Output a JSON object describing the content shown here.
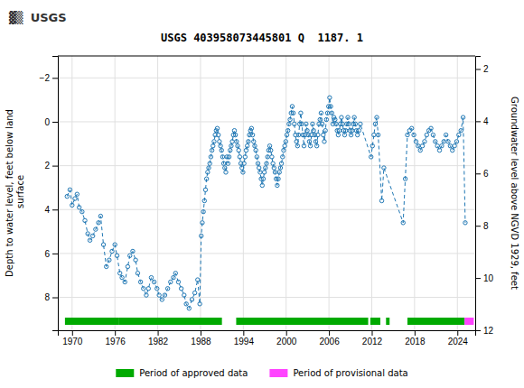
{
  "chart_data": {
    "type": "line",
    "title": "USGS 403958073445801 Q  1187. 1",
    "annotations": [
      "▓▒",
      "USGS"
    ],
    "ylabel": "Depth to water level, feet below land\n surface",
    "y2label": "Groundwater level above NGVD 1929, feet",
    "xlim": [
      1968.0,
      2026.5
    ],
    "xticks": [
      1970,
      1976,
      1982,
      1988,
      1994,
      2000,
      2006,
      2012,
      2018,
      2024
    ],
    "ylim": [
      9.5,
      -3.0
    ],
    "yticks": [
      -2,
      0,
      2,
      4,
      6,
      8
    ],
    "y2lim": [
      12.0,
      1.5
    ],
    "y2ticks": [
      2,
      4,
      6,
      8,
      10,
      12
    ],
    "grid": true,
    "x": [
      1969.3,
      1969.7,
      1970.0,
      1970.4,
      1970.7,
      1971.0,
      1971.4,
      1971.8,
      1972.2,
      1972.5,
      1972.9,
      1973.3,
      1973.7,
      1974.0,
      1974.4,
      1974.8,
      1975.2,
      1975.6,
      1976.0,
      1976.3,
      1976.7,
      1977.0,
      1977.4,
      1977.8,
      1978.1,
      1978.5,
      1978.9,
      1979.2,
      1979.6,
      1980.0,
      1980.4,
      1980.7,
      1981.1,
      1981.5,
      1981.9,
      1982.2,
      1982.6,
      1983.0,
      1983.4,
      1983.8,
      1984.2,
      1984.5,
      1984.9,
      1985.3,
      1985.7,
      1986.0,
      1986.4,
      1986.8,
      1987.2,
      1987.6,
      1987.9,
      1988.1,
      1988.25,
      1988.4,
      1988.55,
      1988.7,
      1988.85,
      1989.0,
      1989.15,
      1989.3,
      1989.45,
      1989.6,
      1989.75,
      1989.9,
      1990.05,
      1990.2,
      1990.35,
      1990.5,
      1990.65,
      1990.8,
      1990.95,
      1991.1,
      1991.25,
      1991.4,
      1991.55,
      1991.7,
      1991.85,
      1992.0,
      1992.15,
      1992.3,
      1992.45,
      1992.6,
      1992.75,
      1992.9,
      1993.05,
      1993.2,
      1993.35,
      1993.5,
      1993.65,
      1993.8,
      1993.95,
      1994.1,
      1994.25,
      1994.4,
      1994.55,
      1994.7,
      1994.85,
      1995.0,
      1995.15,
      1995.3,
      1995.45,
      1995.6,
      1995.75,
      1995.9,
      1996.05,
      1996.2,
      1996.35,
      1996.5,
      1996.65,
      1996.8,
      1996.95,
      1997.1,
      1997.25,
      1997.4,
      1997.55,
      1997.7,
      1997.85,
      1998.0,
      1998.15,
      1998.3,
      1998.45,
      1998.6,
      1998.75,
      1998.9,
      1999.05,
      1999.2,
      1999.35,
      1999.5,
      1999.65,
      1999.8,
      1999.95,
      2000.1,
      2000.25,
      2000.4,
      2000.55,
      2000.7,
      2000.85,
      2001.0,
      2001.15,
      2001.3,
      2001.45,
      2001.6,
      2001.75,
      2001.9,
      2002.05,
      2002.2,
      2002.35,
      2002.5,
      2002.65,
      2002.8,
      2002.95,
      2003.1,
      2003.25,
      2003.4,
      2003.55,
      2003.7,
      2003.85,
      2004.0,
      2004.15,
      2004.3,
      2004.45,
      2004.6,
      2004.75,
      2004.9,
      2005.05,
      2005.2,
      2005.35,
      2005.5,
      2005.65,
      2005.8,
      2005.95,
      2006.1,
      2006.25,
      2006.4,
      2006.55,
      2006.7,
      2006.85,
      2007.0,
      2007.15,
      2007.3,
      2007.45,
      2007.6,
      2007.75,
      2007.9,
      2008.05,
      2008.2,
      2008.35,
      2008.5,
      2008.65,
      2008.8,
      2008.95,
      2009.1,
      2009.25,
      2009.4,
      2009.55,
      2009.7,
      2009.85,
      2010.0,
      2010.2,
      2010.4,
      2011.9,
      2012.1,
      2012.3,
      2012.5,
      2012.7,
      2012.9,
      2013.4,
      2013.7,
      2016.4,
      2016.7,
      2017.0,
      2017.3,
      2017.6,
      2017.9,
      2018.2,
      2018.5,
      2018.8,
      2019.1,
      2019.4,
      2019.7,
      2020.0,
      2020.3,
      2020.6,
      2020.9,
      2021.2,
      2021.5,
      2021.8,
      2022.1,
      2022.4,
      2022.7,
      2023.0,
      2023.3,
      2023.6,
      2023.9,
      2024.2,
      2024.5,
      2024.8,
      2025.1
    ],
    "series": [
      {
        "marker": "circle",
        "line_style": "dashed",
        "values": [
          3.4,
          3.1,
          3.8,
          3.5,
          3.3,
          3.9,
          4.1,
          4.5,
          5.1,
          5.4,
          5.2,
          4.9,
          4.6,
          4.3,
          5.6,
          6.6,
          6.3,
          5.9,
          5.6,
          6.1,
          6.9,
          7.1,
          7.3,
          6.6,
          6.1,
          5.9,
          6.3,
          6.9,
          7.3,
          7.6,
          7.9,
          7.6,
          7.1,
          7.3,
          7.6,
          7.9,
          8.1,
          7.9,
          7.6,
          7.3,
          7.1,
          6.9,
          7.3,
          7.6,
          7.9,
          8.3,
          8.5,
          8.1,
          7.8,
          7.2,
          8.3,
          5.2,
          4.6,
          4.1,
          3.6,
          3.1,
          2.6,
          2.3,
          2.1,
          1.9,
          1.6,
          1.3,
          1.1,
          0.9,
          0.6,
          0.4,
          0.3,
          0.6,
          0.9,
          1.1,
          1.3,
          1.6,
          1.9,
          2.1,
          2.3,
          1.6,
          1.9,
          1.6,
          1.3,
          1.1,
          0.9,
          0.6,
          0.4,
          0.6,
          0.9,
          1.1,
          1.3,
          1.6,
          1.9,
          2.1,
          2.3,
          1.9,
          1.6,
          1.3,
          1.1,
          0.9,
          0.6,
          0.4,
          0.3,
          0.6,
          0.9,
          1.1,
          1.3,
          1.6,
          1.9,
          2.1,
          2.3,
          2.6,
          2.9,
          2.6,
          2.3,
          2.1,
          1.9,
          1.6,
          1.3,
          1.1,
          1.3,
          1.6,
          1.9,
          2.1,
          2.3,
          2.6,
          2.9,
          2.6,
          2.3,
          2.1,
          1.9,
          1.6,
          1.3,
          1.1,
          0.9,
          0.6,
          0.4,
          0.1,
          -0.1,
          -0.4,
          -0.7,
          -0.4,
          0.1,
          0.6,
          0.9,
          1.1,
          0.6,
          0.1,
          -0.4,
          0.1,
          0.6,
          1.1,
          0.6,
          0.1,
          0.4,
          0.6,
          0.9,
          1.1,
          0.6,
          0.1,
          0.4,
          0.6,
          0.9,
          1.1,
          0.6,
          0.1,
          -0.1,
          -0.4,
          0.1,
          0.6,
          0.9,
          0.4,
          -0.1,
          -0.4,
          -0.7,
          -1.1,
          -0.7,
          -0.4,
          0.1,
          -0.2,
          -0.1,
          0.1,
          0.4,
          0.6,
          0.4,
          0.1,
          -0.2,
          0.1,
          0.4,
          0.6,
          0.4,
          0.1,
          -0.2,
          0.1,
          0.4,
          0.6,
          0.4,
          0.1,
          -0.2,
          0.1,
          0.4,
          0.6,
          0.4,
          0.1,
          1.6,
          1.1,
          0.6,
          0.1,
          -0.2,
          0.6,
          3.6,
          2.1,
          4.6,
          2.6,
          0.6,
          0.4,
          0.3,
          0.6,
          0.9,
          1.1,
          1.3,
          1.1,
          0.9,
          0.6,
          0.4,
          0.3,
          0.6,
          0.9,
          1.1,
          1.3,
          1.1,
          0.9,
          0.6,
          0.9,
          1.1,
          1.3,
          1.1,
          0.9,
          0.6,
          0.4,
          -0.2,
          4.6
        ]
      }
    ],
    "periods": [
      {
        "name": "Period of approved data",
        "color": "#00aa00",
        "ranges": [
          [
            1969.0,
            1976.5
          ],
          [
            1976.5,
            1991.0
          ],
          [
            1993.0,
            2011.5
          ],
          [
            2011.8,
            2013.2
          ],
          [
            2014.0,
            2014.5
          ],
          [
            2017.0,
            2025.0
          ]
        ]
      },
      {
        "name": "Period of provisional data",
        "color": "#ff44ff",
        "ranges": [
          [
            2025.0,
            2026.3
          ]
        ]
      }
    ]
  }
}
